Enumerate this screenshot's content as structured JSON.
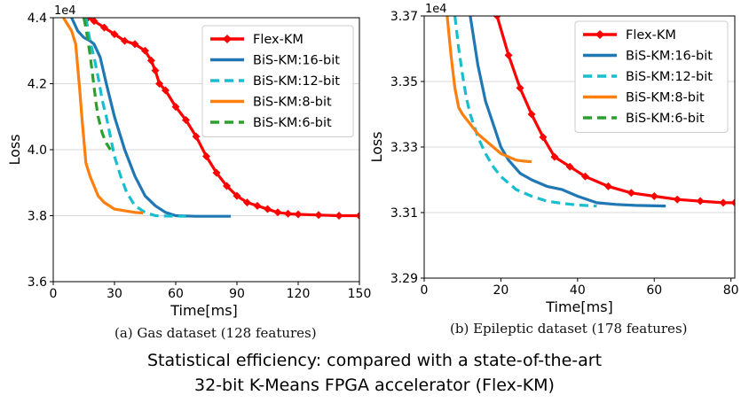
{
  "captions": {
    "a": "(a) Gas dataset (128 features)",
    "b": "(b) Epileptic dataset (178 features)",
    "main_line1": "Statistical efficiency: compared with a state-of-the-art",
    "main_line2": "32-bit K-Means FPGA accelerator (Flex-KM)"
  },
  "chart_data": [
    {
      "type": "line",
      "xlabel": "Time[ms]",
      "ylabel": "Loss",
      "y_multiplier": "1e4",
      "xlim": [
        0,
        150
      ],
      "ylim": [
        3.6,
        4.4
      ],
      "xticks": [
        0,
        30,
        60,
        90,
        120,
        150
      ],
      "yticks": [
        3.6,
        3.8,
        4.0,
        4.2,
        4.4
      ],
      "grid": "y",
      "legend_position": "upper-right",
      "series": [
        {
          "name": "Flex-KM",
          "color": "#ff0000",
          "style": "solid-marker",
          "x": [
            17,
            20,
            25,
            30,
            35,
            40,
            45,
            48,
            50,
            52,
            55,
            60,
            65,
            70,
            75,
            80,
            85,
            90,
            95,
            100,
            105,
            110,
            115,
            120,
            130,
            140,
            150
          ],
          "y": [
            4.4,
            4.39,
            4.37,
            4.35,
            4.33,
            4.32,
            4.3,
            4.27,
            4.24,
            4.2,
            4.18,
            4.13,
            4.09,
            4.04,
            3.98,
            3.93,
            3.89,
            3.86,
            3.84,
            3.83,
            3.82,
            3.81,
            3.806,
            3.804,
            3.802,
            3.8,
            3.8
          ]
        },
        {
          "name": "BiS-KM:16-bit",
          "color": "#1f77b4",
          "style": "solid",
          "x": [
            9,
            12,
            15,
            18,
            20,
            23,
            26,
            30,
            35,
            40,
            45,
            50,
            55,
            60,
            70,
            87
          ],
          "y": [
            4.4,
            4.36,
            4.34,
            4.33,
            4.32,
            4.28,
            4.2,
            4.1,
            4.0,
            3.92,
            3.86,
            3.83,
            3.81,
            3.8,
            3.798,
            3.798
          ]
        },
        {
          "name": "BiS-KM:12-bit",
          "color": "#17becf",
          "style": "dashed",
          "x": [
            16,
            18,
            20,
            22,
            24,
            26,
            28,
            30,
            33,
            36,
            40,
            45,
            50,
            55,
            65
          ],
          "y": [
            4.4,
            4.33,
            4.28,
            4.22,
            4.15,
            4.1,
            4.04,
            3.98,
            3.92,
            3.87,
            3.83,
            3.81,
            3.8,
            3.799,
            3.798
          ]
        },
        {
          "name": "BiS-KM:8-bit",
          "color": "#ff7f0e",
          "style": "solid",
          "x": [
            5,
            9,
            11,
            12,
            13,
            14,
            15,
            16,
            18,
            20,
            22,
            25,
            30,
            35,
            40,
            44
          ],
          "y": [
            4.4,
            4.36,
            4.32,
            4.25,
            4.18,
            4.1,
            4.03,
            3.96,
            3.92,
            3.89,
            3.86,
            3.84,
            3.82,
            3.815,
            3.81,
            3.808
          ]
        },
        {
          "name": "BiS-KM:6-bit",
          "color": "#2ca02c",
          "style": "dashed",
          "x": [
            15,
            16,
            17,
            18,
            19,
            20,
            21,
            22,
            24,
            26,
            28
          ],
          "y": [
            4.4,
            4.37,
            4.33,
            4.29,
            4.24,
            4.19,
            4.14,
            4.1,
            4.05,
            4.02,
            4.0
          ]
        }
      ]
    },
    {
      "type": "line",
      "xlabel": "Time[ms]",
      "ylabel": "Loss",
      "y_multiplier": "1e4",
      "xlim": [
        0,
        81
      ],
      "ylim": [
        3.29,
        3.37
      ],
      "xticks": [
        0,
        20,
        40,
        60,
        80
      ],
      "yticks": [
        3.29,
        3.31,
        3.33,
        3.35,
        3.37
      ],
      "grid": "y",
      "legend_position": "upper-right",
      "series": [
        {
          "name": "Flex-KM",
          "color": "#ff0000",
          "style": "solid-marker",
          "x": [
            19,
            22,
            25,
            28,
            31,
            34,
            38,
            42,
            48,
            54,
            60,
            66,
            72,
            78,
            81
          ],
          "y": [
            3.37,
            3.358,
            3.348,
            3.34,
            3.333,
            3.327,
            3.324,
            3.321,
            3.318,
            3.316,
            3.315,
            3.314,
            3.3135,
            3.313,
            3.313
          ]
        },
        {
          "name": "BiS-KM:16-bit",
          "color": "#1f77b4",
          "style": "solid",
          "x": [
            12,
            14,
            16,
            18,
            20,
            22,
            25,
            28,
            32,
            36,
            40,
            45,
            50,
            55,
            63
          ],
          "y": [
            3.37,
            3.355,
            3.344,
            3.337,
            3.33,
            3.326,
            3.322,
            3.32,
            3.318,
            3.317,
            3.315,
            3.313,
            3.3125,
            3.3122,
            3.312
          ]
        },
        {
          "name": "BiS-KM:12-bit",
          "color": "#17becf",
          "style": "dashed",
          "x": [
            8,
            9,
            10,
            11,
            12,
            14,
            16,
            18,
            20,
            24,
            28,
            32,
            36,
            40,
            45
          ],
          "y": [
            3.37,
            3.36,
            3.352,
            3.345,
            3.34,
            3.333,
            3.328,
            3.324,
            3.321,
            3.317,
            3.315,
            3.3135,
            3.3128,
            3.3123,
            3.312
          ]
        },
        {
          "name": "BiS-KM:8-bit",
          "color": "#ff7f0e",
          "style": "solid",
          "x": [
            6,
            7,
            8,
            9,
            10,
            12,
            14,
            16,
            18,
            20,
            22,
            24,
            26,
            28
          ],
          "y": [
            3.37,
            3.358,
            3.348,
            3.342,
            3.34,
            3.337,
            3.334,
            3.332,
            3.33,
            3.328,
            3.327,
            3.326,
            3.3257,
            3.3255
          ]
        },
        {
          "name": "BiS-KM:6-bit",
          "color": "#2ca02c",
          "style": "dashed",
          "x": [],
          "y": []
        }
      ]
    }
  ]
}
